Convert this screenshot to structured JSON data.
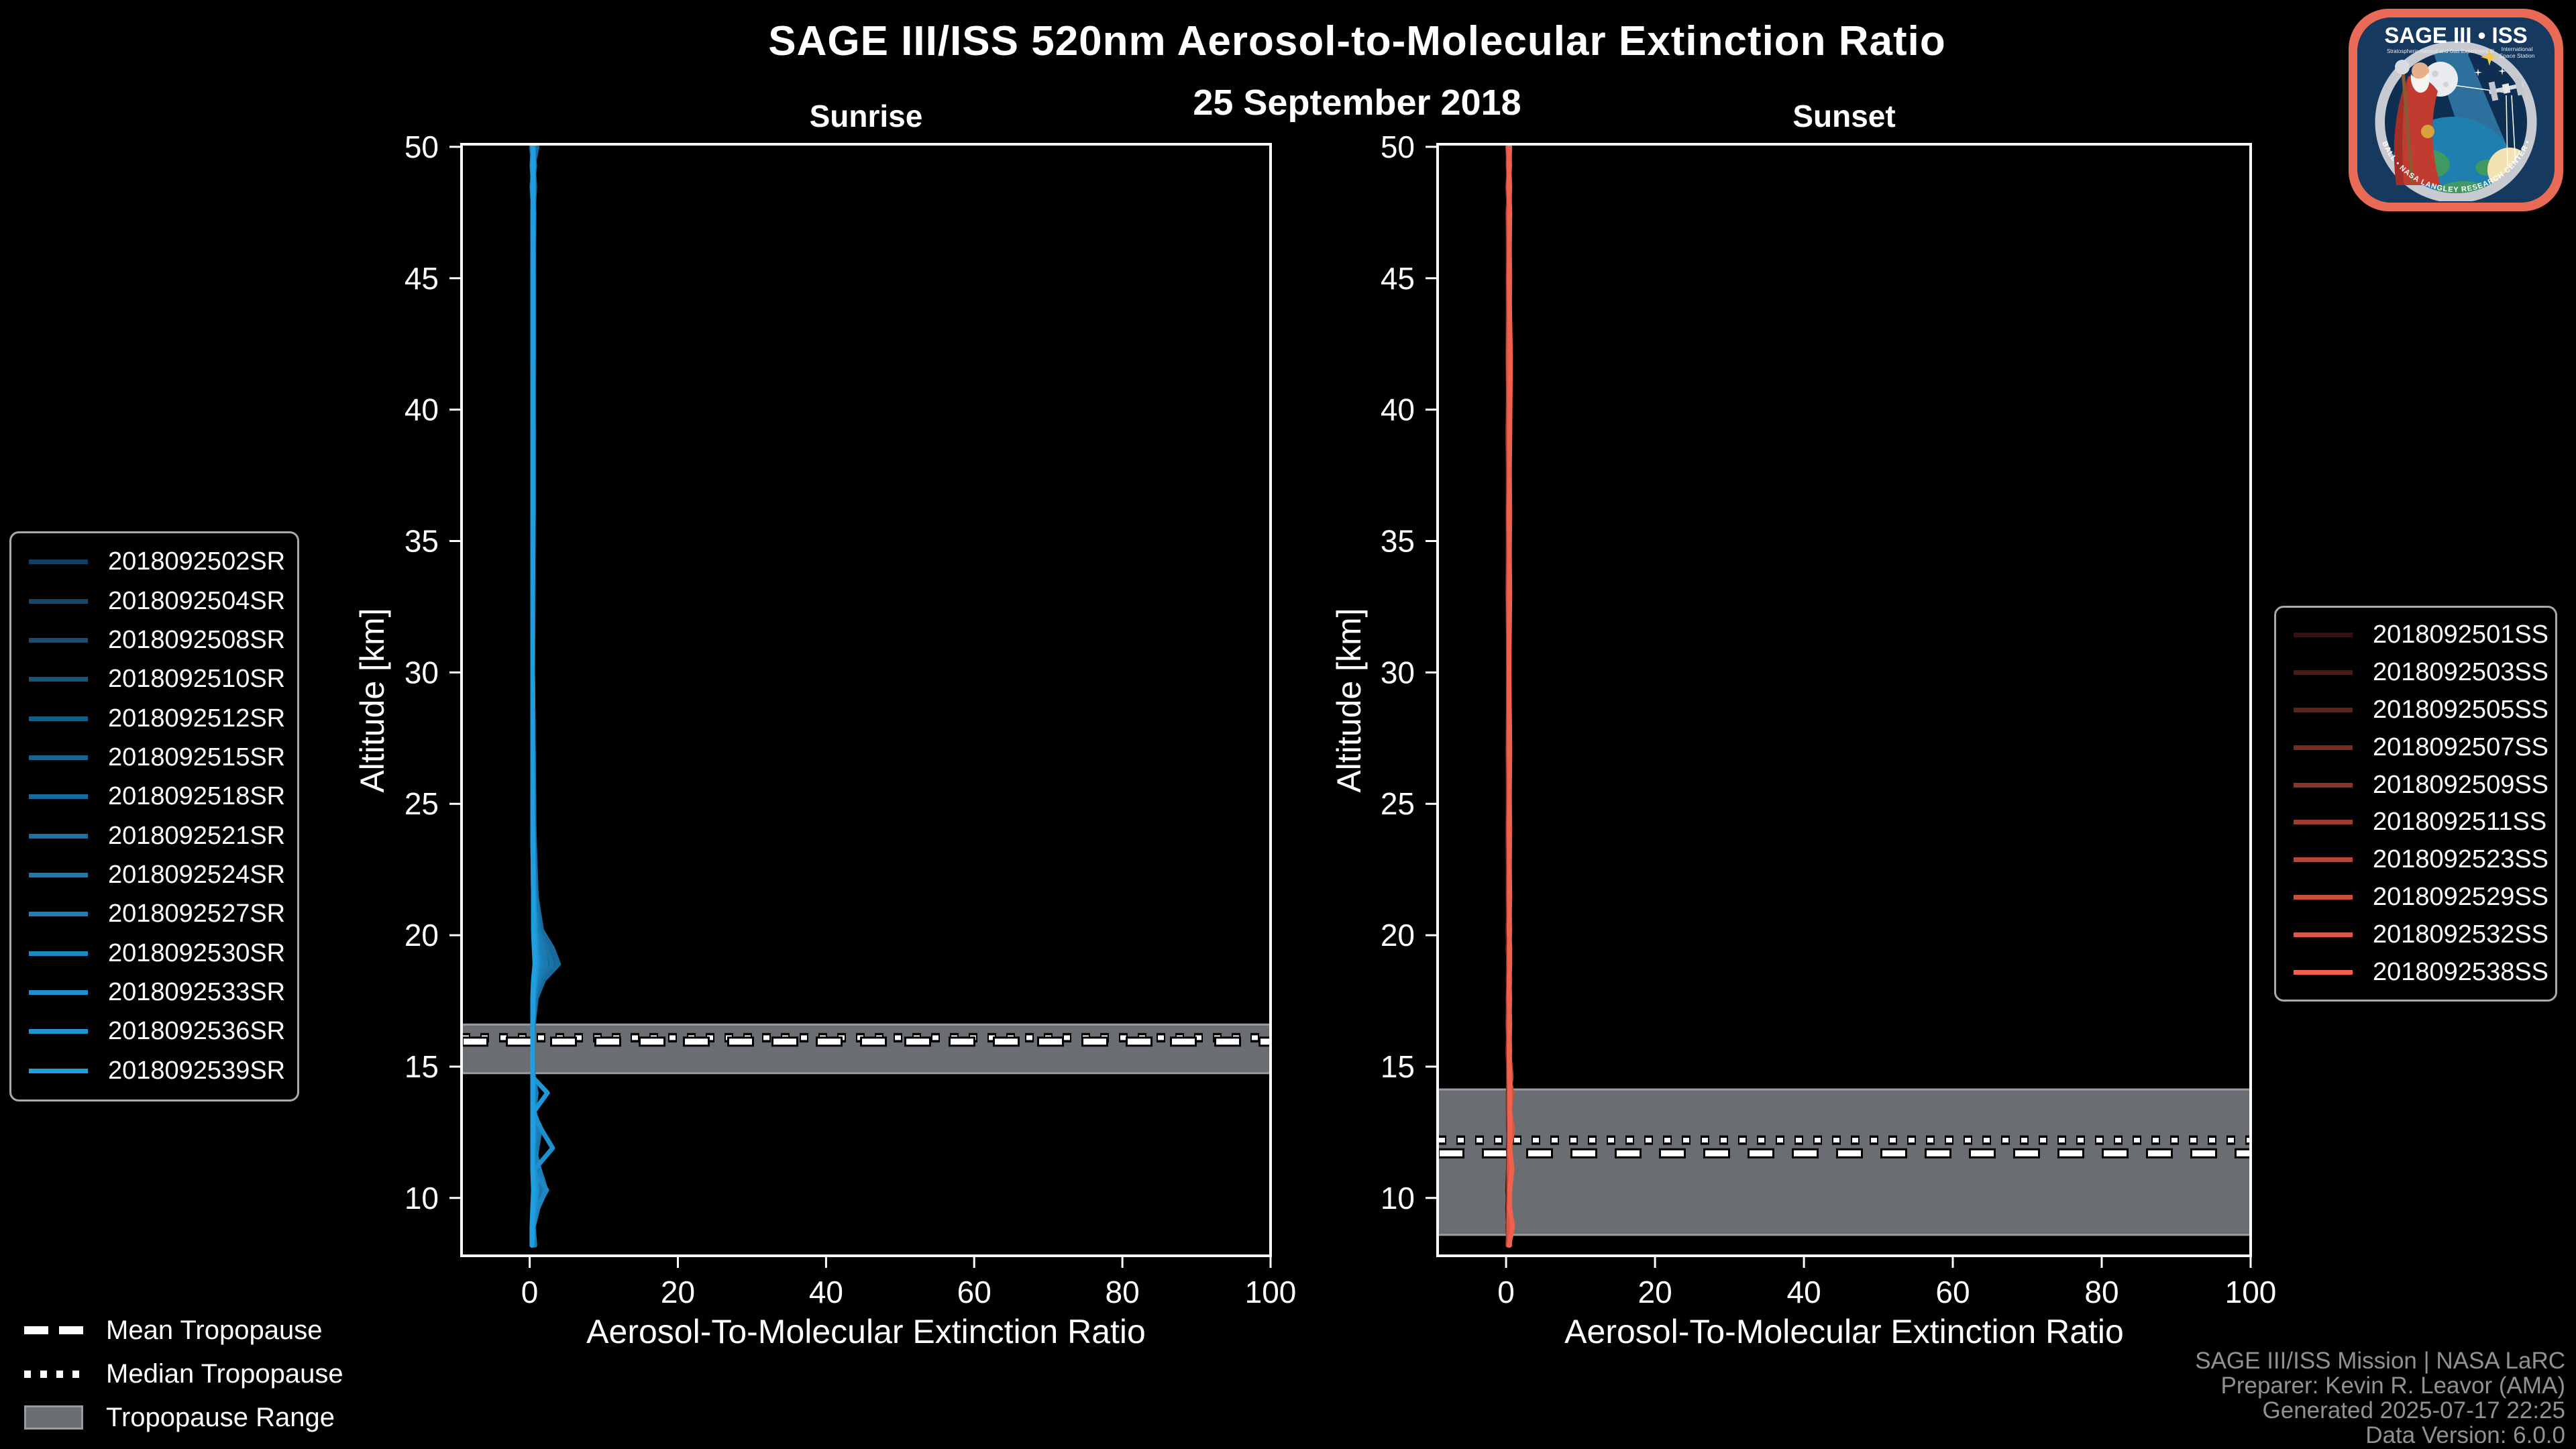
{
  "title": "SAGE III/ISS 520nm Aerosol-to-Molecular Extinction Ratio",
  "subtitle_date": "25 September 2018",
  "background_color": "#000000",
  "credits": {
    "line1": "SAGE III/ISS Mission | NASA LaRC",
    "line2": "Preparer: Kevin R. Leavor (AMA)",
    "line3": "Generated 2025-07-17 22:25",
    "line4": "Data Version: 6.0.0"
  },
  "tropopause_legend": {
    "mean_label": "Mean Tropopause",
    "median_label": "Median Tropopause",
    "range_label": "Tropopause Range",
    "band_color": "#6a6e73"
  },
  "logo": {
    "title": "SAGE III • ISS",
    "subtitle_left": "Stratospheric Aerosol and Gas Experiment III",
    "subtitle_right_1": "International",
    "subtitle_right_2": "Space Station",
    "ring_text": "BALL • NASA LANGLEY RESEARCH CENTER • TAS-I • ESA"
  },
  "chart_data": {
    "type": "line",
    "xlabel": "Aerosol-To-Molecular Extinction Ratio",
    "ylabel": "Altitude [km]",
    "xlim": [
      -9.2,
      100
    ],
    "ylim": [
      7.8,
      50.1
    ],
    "xticks": [
      0,
      20,
      40,
      60,
      80,
      100
    ],
    "yticks": [
      10,
      15,
      20,
      25,
      30,
      35,
      40,
      45,
      50
    ],
    "grid": false,
    "legend_position": "outside",
    "altitudes_km": [
      50,
      49.3,
      48.5,
      47.5,
      45,
      42,
      39,
      36,
      33,
      30,
      27,
      24,
      21.5,
      20.2,
      19.5,
      18.9,
      18.3,
      17.6,
      16.6,
      15.6,
      14.6,
      14.0,
      13.3,
      12.6,
      11.9,
      11.1,
      10.3,
      9.6,
      8.9,
      8.2
    ],
    "panels": [
      {
        "id": "sunrise",
        "title": "Sunrise",
        "tropopause": {
          "range_km": [
            14.75,
            16.6
          ],
          "mean_km": 15.95,
          "median_km": 16.1
        },
        "series": [
          {
            "name": "2018092502SR",
            "color": "#124064",
            "x": [
              0.5,
              0.3,
              0.5,
              0.4,
              0.4,
              0.5,
              0.5,
              0.5,
              0.4,
              0.4,
              0.4,
              0.4,
              0.5,
              0.5,
              0.6,
              0.7,
              0.6,
              0.5,
              0.4,
              0.4,
              0.4,
              0.5,
              0.4,
              0.5,
              0.4,
              0.4,
              0.5,
              0.4,
              0.4,
              0.4
            ]
          },
          {
            "name": "2018092504SR",
            "color": "#13476e",
            "x": [
              0.2,
              0.5,
              0.3,
              0.5,
              0.4,
              0.4,
              0.5,
              0.5,
              0.5,
              0.4,
              0.4,
              0.4,
              0.5,
              0.6,
              0.8,
              0.9,
              0.7,
              0.5,
              0.4,
              0.4,
              0.4,
              0.4,
              0.5,
              0.6,
              0.5,
              0.4,
              0.6,
              0.5,
              0.4,
              0.3
            ]
          },
          {
            "name": "2018092508SR",
            "color": "#144e77",
            "x": [
              0.7,
              0.4,
              0.6,
              0.4,
              0.5,
              0.5,
              0.5,
              0.4,
              0.4,
              0.4,
              0.4,
              0.5,
              0.5,
              0.7,
              1.1,
              1.3,
              0.9,
              0.6,
              0.4,
              0.4,
              0.4,
              0.5,
              0.4,
              0.5,
              0.5,
              0.5,
              0.7,
              0.5,
              0.4,
              0.4
            ]
          },
          {
            "name": "2018092510SR",
            "color": "#155681",
            "x": [
              0.3,
              0.6,
              0.4,
              0.5,
              0.4,
              0.5,
              0.4,
              0.4,
              0.4,
              0.4,
              0.5,
              0.5,
              0.6,
              0.9,
              1.5,
              1.8,
              1.1,
              0.6,
              0.4,
              0.4,
              0.5,
              0.6,
              0.5,
              0.7,
              0.6,
              0.5,
              0.8,
              0.6,
              0.4,
              0.4
            ]
          },
          {
            "name": "2018092512SR",
            "color": "#165d8a",
            "x": [
              0.8,
              0.5,
              0.7,
              0.5,
              0.5,
              0.5,
              0.5,
              0.5,
              0.4,
              0.4,
              0.5,
              0.5,
              0.7,
              1.1,
              2.1,
              2.6,
              1.4,
              0.7,
              0.5,
              0.4,
              0.4,
              0.5,
              0.4,
              0.6,
              0.5,
              0.4,
              0.6,
              0.4,
              0.3,
              0.3
            ]
          },
          {
            "name": "2018092515SR",
            "color": "#176494",
            "x": [
              0.4,
              0.7,
              0.4,
              0.6,
              0.5,
              0.5,
              0.5,
              0.4,
              0.4,
              0.4,
              0.5,
              0.6,
              0.8,
              1.4,
              2.7,
              3.4,
              1.7,
              0.8,
              0.5,
              0.4,
              0.5,
              0.6,
              0.5,
              0.9,
              0.7,
              0.5,
              1.0,
              0.6,
              0.4,
              0.4
            ]
          },
          {
            "name": "2018092518SR",
            "color": "#196b9d",
            "x": [
              1.0,
              0.5,
              0.6,
              0.5,
              0.5,
              0.5,
              0.4,
              0.4,
              0.4,
              0.4,
              0.5,
              0.6,
              0.9,
              1.6,
              3.1,
              3.9,
              1.9,
              0.9,
              0.5,
              0.4,
              0.5,
              0.7,
              0.5,
              1.1,
              0.8,
              0.6,
              1.3,
              0.7,
              0.5,
              0.4
            ]
          },
          {
            "name": "2018092521SR",
            "color": "#1a73a7",
            "x": [
              0.3,
              0.6,
              0.3,
              0.5,
              0.5,
              0.5,
              0.5,
              0.4,
              0.4,
              0.4,
              0.5,
              0.5,
              0.8,
              1.3,
              2.3,
              3.0,
              1.5,
              0.7,
              0.5,
              0.4,
              0.5,
              0.8,
              0.6,
              1.4,
              1.0,
              0.6,
              1.6,
              0.8,
              0.5,
              0.4
            ]
          },
          {
            "name": "2018092524SR",
            "color": "#1b7ab0",
            "x": [
              0.6,
              0.4,
              0.6,
              0.5,
              0.5,
              0.4,
              0.4,
              0.4,
              0.4,
              0.4,
              0.4,
              0.5,
              0.7,
              1.1,
              1.8,
              2.2,
              1.2,
              0.6,
              0.4,
              0.4,
              0.5,
              0.9,
              0.6,
              1.2,
              0.8,
              0.5,
              1.9,
              1.0,
              0.5,
              0.7
            ]
          },
          {
            "name": "2018092527SR",
            "color": "#1c81ba",
            "x": [
              0.4,
              0.6,
              0.4,
              0.5,
              0.5,
              0.5,
              0.5,
              0.4,
              0.4,
              0.4,
              0.4,
              0.5,
              0.6,
              0.9,
              1.3,
              1.6,
              0.9,
              0.6,
              0.4,
              0.4,
              0.4,
              0.6,
              0.5,
              0.8,
              0.6,
              1.3,
              2.2,
              1.1,
              0.5,
              0.4
            ]
          },
          {
            "name": "2018092530SR",
            "color": "#1d88c3",
            "x": [
              0.5,
              0.3,
              0.5,
              0.4,
              0.4,
              0.4,
              0.5,
              0.5,
              0.4,
              0.4,
              0.4,
              0.4,
              0.6,
              0.8,
              1.0,
              1.2,
              0.8,
              0.5,
              0.4,
              0.4,
              0.4,
              0.5,
              0.4,
              0.6,
              0.5,
              0.4,
              2.3,
              0.9,
              0.4,
              0.3
            ]
          },
          {
            "name": "2018092533SR",
            "color": "#1e90cd",
            "x": [
              0.4,
              0.5,
              0.4,
              0.5,
              0.4,
              0.4,
              0.5,
              0.5,
              0.4,
              0.4,
              0.4,
              0.4,
              0.5,
              0.7,
              0.9,
              1.0,
              0.7,
              0.5,
              0.4,
              0.4,
              0.4,
              0.5,
              0.4,
              1.6,
              3.1,
              0.7,
              1.0,
              0.6,
              0.4,
              0.3
            ]
          },
          {
            "name": "2018092536SR",
            "color": "#1f97d6",
            "x": [
              0.5,
              0.4,
              0.5,
              0.4,
              0.5,
              0.5,
              0.4,
              0.4,
              0.4,
              0.4,
              0.4,
              0.4,
              0.5,
              0.6,
              0.7,
              0.8,
              0.6,
              0.5,
              0.4,
              0.4,
              0.4,
              2.4,
              0.6,
              0.5,
              0.4,
              0.4,
              0.7,
              0.5,
              0.4,
              0.3
            ]
          },
          {
            "name": "2018092539SR",
            "color": "#209ee0",
            "x": [
              0.4,
              0.5,
              0.4,
              0.5,
              0.4,
              0.4,
              0.4,
              0.4,
              0.4,
              0.4,
              0.4,
              0.4,
              0.5,
              0.5,
              0.6,
              0.7,
              0.5,
              0.4,
              0.4,
              0.4,
              0.4,
              0.4,
              0.4,
              0.4,
              0.4,
              0.4,
              0.5,
              0.4,
              0.3,
              0.3
            ]
          }
        ]
      },
      {
        "id": "sunset",
        "title": "Sunset",
        "tropopause": {
          "range_km": [
            8.6,
            14.13
          ],
          "mean_km": 11.7,
          "median_km": 12.2
        },
        "series": [
          {
            "name": "2018092501SS",
            "color": "#3a100e",
            "x": [
              0.3,
              0.2,
              0.4,
              0.3,
              0.2,
              0.4,
              0.3,
              0.2,
              0.4,
              0.3,
              0.3,
              0.4,
              0.2,
              0.3,
              0.4,
              0.3,
              0.2,
              0.4,
              0.3,
              0.3,
              0.4,
              0.3,
              0.3,
              0.4,
              0.4,
              0.3,
              0.2,
              0.4,
              0.3,
              0.3
            ]
          },
          {
            "name": "2018092503SS",
            "color": "#4e1915",
            "x": [
              0.2,
              0.4,
              0.2,
              0.4,
              0.3,
              0.2,
              0.4,
              0.3,
              0.3,
              0.4,
              0.2,
              0.3,
              0.4,
              0.2,
              0.3,
              0.4,
              0.3,
              0.2,
              0.4,
              0.3,
              0.3,
              0.4,
              0.4,
              0.4,
              0.3,
              0.4,
              0.3,
              0.2,
              0.3,
              0.4
            ]
          },
          {
            "name": "2018092505SS",
            "color": "#62221c",
            "x": [
              0.4,
              0.3,
              0.5,
              0.2,
              0.4,
              0.3,
              0.5,
              0.3,
              0.2,
              0.4,
              0.4,
              0.2,
              0.3,
              0.5,
              0.2,
              0.4,
              0.4,
              0.3,
              0.2,
              0.4,
              0.3,
              0.3,
              0.3,
              0.5,
              0.4,
              0.4,
              0.4,
              0.3,
              0.4,
              0.2
            ]
          },
          {
            "name": "2018092507SS",
            "color": "#762b23",
            "x": [
              0.3,
              0.5,
              0.2,
              0.4,
              0.3,
              0.4,
              0.2,
              0.4,
              0.3,
              0.3,
              0.5,
              0.3,
              0.4,
              0.3,
              0.5,
              0.4,
              0.3,
              0.4,
              0.4,
              0.2,
              0.4,
              0.3,
              0.3,
              0.3,
              0.5,
              0.3,
              0.3,
              0.5,
              0.2,
              0.4
            ]
          },
          {
            "name": "2018092509SS",
            "color": "#8a342a",
            "x": [
              0.5,
              0.3,
              0.4,
              0.3,
              0.5,
              0.3,
              0.4,
              0.3,
              0.5,
              0.3,
              0.3,
              0.4,
              0.3,
              0.4,
              0.4,
              0.3,
              0.5,
              0.3,
              0.4,
              0.4,
              0.5,
              0.4,
              0.4,
              0.4,
              0.5,
              0.5,
              0.4,
              0.3,
              0.4,
              0.3
            ]
          },
          {
            "name": "2018092511SS",
            "color": "#9e3d31",
            "x": [
              0.2,
              0.4,
              0.3,
              0.5,
              0.3,
              0.4,
              0.3,
              0.4,
              0.3,
              0.4,
              0.4,
              0.3,
              0.5,
              0.4,
              0.4,
              0.5,
              0.4,
              0.3,
              0.3,
              0.5,
              0.4,
              0.4,
              0.5,
              0.5,
              0.4,
              0.4,
              0.5,
              0.4,
              0.3,
              0.3
            ]
          },
          {
            "name": "2018092523SS",
            "color": "#b34638",
            "x": [
              0.4,
              0.3,
              0.5,
              0.3,
              0.4,
              0.4,
              0.5,
              0.3,
              0.4,
              0.4,
              0.3,
              0.5,
              0.4,
              0.4,
              0.5,
              0.4,
              0.4,
              0.5,
              0.3,
              0.4,
              0.7,
              0.4,
              0.4,
              0.5,
              0.4,
              0.5,
              0.4,
              0.5,
              0.4,
              0.3
            ]
          },
          {
            "name": "2018092529SS",
            "color": "#c74f3f",
            "x": [
              0.4,
              0.5,
              0.3,
              0.5,
              0.4,
              0.3,
              0.4,
              0.5,
              0.3,
              0.4,
              0.5,
              0.4,
              0.4,
              0.5,
              0.4,
              0.4,
              0.5,
              0.4,
              0.5,
              0.4,
              0.4,
              0.8,
              0.5,
              0.5,
              0.5,
              0.4,
              0.5,
              0.4,
              0.5,
              0.4
            ]
          },
          {
            "name": "2018092532SS",
            "color": "#dc5846",
            "x": [
              0.3,
              0.4,
              0.5,
              0.4,
              0.5,
              0.4,
              0.4,
              0.5,
              0.4,
              0.4,
              0.4,
              0.5,
              0.4,
              0.5,
              0.4,
              0.5,
              0.4,
              0.5,
              0.4,
              0.5,
              0.4,
              0.5,
              0.5,
              0.9,
              0.5,
              0.5,
              0.5,
              0.4,
              0.4,
              0.5
            ]
          },
          {
            "name": "2018092538SS",
            "color": "#f0614d",
            "x": [
              0.5,
              0.4,
              0.4,
              0.5,
              0.4,
              0.6,
              0.5,
              0.4,
              0.5,
              0.4,
              0.5,
              0.4,
              0.5,
              0.4,
              0.5,
              0.5,
              0.4,
              0.4,
              0.5,
              0.4,
              0.5,
              0.5,
              0.5,
              0.5,
              0.5,
              0.8,
              0.5,
              0.5,
              0.9,
              0.4
            ]
          }
        ]
      }
    ]
  }
}
